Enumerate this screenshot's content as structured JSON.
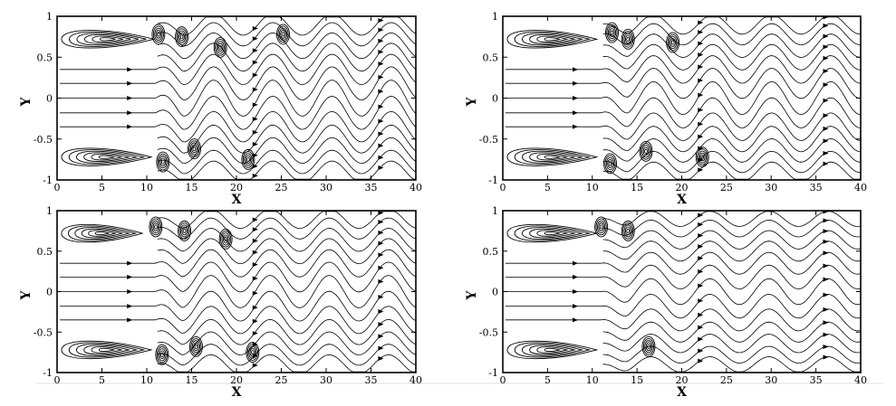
{
  "chart_data": [
    {
      "type": "streamline",
      "xlabel": "X",
      "ylabel": "Y",
      "xlim": [
        0,
        40
      ],
      "ylim": [
        -1,
        1
      ],
      "xticks": [
        "0",
        "5",
        "10",
        "15",
        "20",
        "25",
        "30",
        "35",
        "40"
      ],
      "yticks": [
        "1",
        "0.5",
        "0",
        "-0.5",
        "-1"
      ],
      "recirculation_zones": [
        {
          "wall": "top",
          "x_start": 0.5,
          "x_end": 10.8,
          "y_center": 0.72
        },
        {
          "wall": "bottom",
          "x_start": 0.5,
          "x_end": 10.5,
          "y_center": -0.72
        },
        {
          "wall": "top",
          "x_center": 11.3,
          "y_center": 0.78
        },
        {
          "wall": "top",
          "x_center": 13.9,
          "y_center": 0.75
        },
        {
          "wall": "top",
          "x_center": 18.2,
          "y_center": 0.62
        },
        {
          "wall": "top",
          "x_center": 25.2,
          "y_center": 0.78
        },
        {
          "wall": "bottom",
          "x_center": 11.8,
          "y_center": -0.78
        },
        {
          "wall": "bottom",
          "x_center": 15.3,
          "y_center": -0.62
        },
        {
          "wall": "bottom",
          "x_center": 21.3,
          "y_center": -0.75
        }
      ]
    },
    {
      "type": "streamline",
      "xlabel": "X",
      "ylabel": "Y",
      "xlim": [
        0,
        40
      ],
      "ylim": [
        -1,
        1
      ],
      "xticks": [
        "0",
        "5",
        "10",
        "15",
        "20",
        "25",
        "30",
        "35",
        "40"
      ],
      "yticks": [
        "1",
        "0.5",
        "0",
        "-0.5",
        "-1"
      ],
      "recirculation_zones": [
        {
          "wall": "top",
          "x_start": 0.5,
          "x_end": 10.5,
          "y_center": 0.72
        },
        {
          "wall": "bottom",
          "x_start": 0.5,
          "x_end": 10.5,
          "y_center": -0.72
        },
        {
          "wall": "top",
          "x_center": 12.2,
          "y_center": 0.8
        },
        {
          "wall": "top",
          "x_center": 14.0,
          "y_center": 0.72
        },
        {
          "wall": "top",
          "x_center": 19.0,
          "y_center": 0.68
        },
        {
          "wall": "bottom",
          "x_center": 12.0,
          "y_center": -0.8
        },
        {
          "wall": "bottom",
          "x_center": 16.0,
          "y_center": -0.65
        },
        {
          "wall": "bottom",
          "x_center": 22.3,
          "y_center": -0.72
        }
      ]
    },
    {
      "type": "streamline",
      "xlabel": "X",
      "ylabel": "Y",
      "xlim": [
        0,
        40
      ],
      "ylim": [
        -1,
        1
      ],
      "xticks": [
        "0",
        "5",
        "10",
        "15",
        "20",
        "25",
        "30",
        "35",
        "40"
      ],
      "yticks": [
        "1",
        "0.5",
        "0",
        "-0.5",
        "-1"
      ],
      "recirculation_zones": [
        {
          "wall": "top",
          "x_start": 0.5,
          "x_end": 9.5,
          "y_center": 0.72
        },
        {
          "wall": "bottom",
          "x_start": 0.5,
          "x_end": 10.5,
          "y_center": -0.72
        },
        {
          "wall": "top",
          "x_center": 11.0,
          "y_center": 0.8
        },
        {
          "wall": "top",
          "x_center": 14.2,
          "y_center": 0.75
        },
        {
          "wall": "top",
          "x_center": 18.8,
          "y_center": 0.65
        },
        {
          "wall": "bottom",
          "x_center": 11.7,
          "y_center": -0.78
        },
        {
          "wall": "bottom",
          "x_center": 15.5,
          "y_center": -0.68
        },
        {
          "wall": "bottom",
          "x_center": 21.8,
          "y_center": -0.75
        }
      ]
    },
    {
      "type": "streamline",
      "xlabel": "X",
      "ylabel": "Y",
      "xlim": [
        0,
        40
      ],
      "ylim": [
        -1,
        1
      ],
      "xticks": [
        "0",
        "5",
        "10",
        "15",
        "20",
        "25",
        "30",
        "35",
        "40"
      ],
      "yticks": [
        "1",
        "0.5",
        "0",
        "-0.5",
        "-1"
      ],
      "recirculation_zones": [
        {
          "wall": "top",
          "x_start": 0.5,
          "x_end": 10.5,
          "y_center": 0.72
        },
        {
          "wall": "bottom",
          "x_start": 0.5,
          "x_end": 10.5,
          "y_center": -0.72
        },
        {
          "wall": "top",
          "x_center": 11.0,
          "y_center": 0.8
        },
        {
          "wall": "top",
          "x_center": 14.0,
          "y_center": 0.75
        },
        {
          "wall": "bottom",
          "x_center": 16.3,
          "y_center": -0.68
        }
      ]
    }
  ]
}
